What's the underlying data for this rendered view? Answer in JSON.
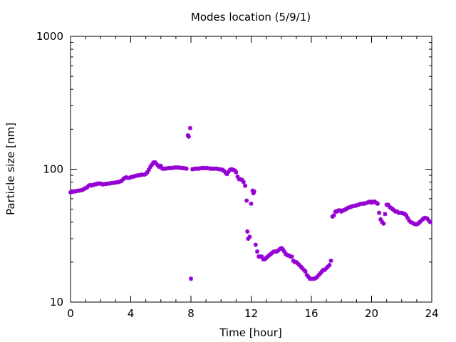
{
  "chart_data": {
    "type": "scatter",
    "title": "Modes location (5/9/1)",
    "xlabel": "Time [hour]",
    "ylabel": "Particle size [nm]",
    "xlim": [
      0,
      24
    ],
    "ylim": [
      10,
      1000
    ],
    "yscale": "log",
    "x_ticks": [
      0,
      4,
      8,
      12,
      16,
      20,
      24
    ],
    "y_ticks": [
      10,
      100,
      1000
    ],
    "x_tick_labels": [
      "0",
      "4",
      "8",
      "12",
      "16",
      "20",
      "24"
    ],
    "y_tick_labels": [
      "10",
      "100",
      "1000"
    ],
    "grid": false,
    "legend": "none",
    "marker_color": "#9400D3",
    "series": [
      {
        "points": [
          [
            0.0,
            67
          ],
          [
            0.1,
            67.5
          ],
          [
            0.2,
            68
          ],
          [
            0.3,
            68
          ],
          [
            0.4,
            68.5
          ],
          [
            0.5,
            69
          ],
          [
            0.6,
            69
          ],
          [
            0.7,
            69.5
          ],
          [
            0.8,
            70
          ],
          [
            0.9,
            71
          ],
          [
            1.0,
            72
          ],
          [
            1.1,
            73
          ],
          [
            1.2,
            75
          ],
          [
            1.3,
            76
          ],
          [
            1.4,
            75.5
          ],
          [
            1.5,
            76
          ],
          [
            1.6,
            77
          ],
          [
            1.7,
            77
          ],
          [
            1.8,
            78
          ],
          [
            1.9,
            78
          ],
          [
            2.0,
            78
          ],
          [
            2.1,
            77
          ],
          [
            2.2,
            77
          ],
          [
            2.3,
            77.5
          ],
          [
            2.4,
            77.5
          ],
          [
            2.5,
            78
          ],
          [
            2.6,
            78
          ],
          [
            2.7,
            78.5
          ],
          [
            2.8,
            79
          ],
          [
            2.9,
            79
          ],
          [
            3.0,
            79.5
          ],
          [
            3.1,
            80
          ],
          [
            3.2,
            80
          ],
          [
            3.3,
            81
          ],
          [
            3.4,
            82
          ],
          [
            3.5,
            84
          ],
          [
            3.6,
            86
          ],
          [
            3.7,
            87
          ],
          [
            3.8,
            86
          ],
          [
            3.9,
            86
          ],
          [
            4.0,
            87
          ],
          [
            4.1,
            88
          ],
          [
            4.2,
            88
          ],
          [
            4.3,
            89
          ],
          [
            4.4,
            89.5
          ],
          [
            4.5,
            90
          ],
          [
            4.6,
            90
          ],
          [
            4.7,
            91
          ],
          [
            4.8,
            91
          ],
          [
            4.9,
            91
          ],
          [
            5.0,
            92
          ],
          [
            5.1,
            95
          ],
          [
            5.2,
            99
          ],
          [
            5.3,
            104
          ],
          [
            5.4,
            108
          ],
          [
            5.5,
            112
          ],
          [
            5.6,
            113
          ],
          [
            5.7,
            110
          ],
          [
            5.8,
            107
          ],
          [
            5.9,
            104
          ],
          [
            6.0,
            106
          ],
          [
            6.1,
            101
          ],
          [
            6.2,
            101
          ],
          [
            6.3,
            101
          ],
          [
            6.4,
            101.5
          ],
          [
            6.5,
            102
          ],
          [
            6.6,
            102
          ],
          [
            6.7,
            102
          ],
          [
            6.8,
            102.5
          ],
          [
            6.9,
            103
          ],
          [
            7.0,
            103
          ],
          [
            7.1,
            103
          ],
          [
            7.2,
            103
          ],
          [
            7.3,
            102.5
          ],
          [
            7.4,
            102
          ],
          [
            7.5,
            102
          ],
          [
            7.6,
            101.5
          ],
          [
            7.7,
            101
          ],
          [
            7.8,
            180
          ],
          [
            7.85,
            176
          ],
          [
            7.95,
            204
          ],
          [
            8.0,
            15
          ],
          [
            8.1,
            100
          ],
          [
            8.2,
            100.5
          ],
          [
            8.3,
            101
          ],
          [
            8.4,
            101
          ],
          [
            8.5,
            101
          ],
          [
            8.6,
            101.5
          ],
          [
            8.7,
            102
          ],
          [
            8.8,
            102
          ],
          [
            8.9,
            102
          ],
          [
            9.0,
            102
          ],
          [
            9.1,
            102
          ],
          [
            9.2,
            101.5
          ],
          [
            9.3,
            101
          ],
          [
            9.4,
            101
          ],
          [
            9.5,
            101
          ],
          [
            9.6,
            101
          ],
          [
            9.7,
            101
          ],
          [
            9.8,
            100.5
          ],
          [
            9.9,
            100
          ],
          [
            10.0,
            99.5
          ],
          [
            10.1,
            99
          ],
          [
            10.2,
            97
          ],
          [
            10.3,
            94
          ],
          [
            10.4,
            92
          ],
          [
            10.5,
            96
          ],
          [
            10.6,
            99
          ],
          [
            10.7,
            100
          ],
          [
            10.8,
            99
          ],
          [
            10.9,
            98
          ],
          [
            11.0,
            95
          ],
          [
            11.1,
            88
          ],
          [
            11.2,
            84
          ],
          [
            11.3,
            84
          ],
          [
            11.4,
            83
          ],
          [
            11.5,
            80
          ],
          [
            11.6,
            75
          ],
          [
            11.7,
            58
          ],
          [
            11.75,
            34
          ],
          [
            11.8,
            30
          ],
          [
            11.9,
            31
          ],
          [
            12.0,
            55
          ],
          [
            12.1,
            69
          ],
          [
            12.15,
            66
          ],
          [
            12.2,
            68
          ],
          [
            12.3,
            27
          ],
          [
            12.4,
            24
          ],
          [
            12.5,
            22
          ],
          [
            12.6,
            22
          ],
          [
            12.7,
            22
          ],
          [
            12.8,
            21
          ],
          [
            12.9,
            21
          ],
          [
            13.0,
            21.5
          ],
          [
            13.1,
            22
          ],
          [
            13.2,
            22.5
          ],
          [
            13.3,
            23
          ],
          [
            13.4,
            23.5
          ],
          [
            13.5,
            24
          ],
          [
            13.6,
            24
          ],
          [
            13.7,
            24
          ],
          [
            13.8,
            24.5
          ],
          [
            13.9,
            25
          ],
          [
            14.0,
            25.5
          ],
          [
            14.1,
            25
          ],
          [
            14.2,
            24
          ],
          [
            14.3,
            23
          ],
          [
            14.4,
            22.5
          ],
          [
            14.5,
            22.5
          ],
          [
            14.6,
            22
          ],
          [
            14.7,
            22
          ],
          [
            14.8,
            20.5
          ],
          [
            14.9,
            20
          ],
          [
            15.0,
            20
          ],
          [
            15.1,
            19.5
          ],
          [
            15.2,
            19
          ],
          [
            15.3,
            18.5
          ],
          [
            15.4,
            18
          ],
          [
            15.5,
            17.5
          ],
          [
            15.6,
            17
          ],
          [
            15.7,
            16
          ],
          [
            15.8,
            15.5
          ],
          [
            15.9,
            15
          ],
          [
            16.0,
            15
          ],
          [
            16.1,
            15
          ],
          [
            16.2,
            15
          ],
          [
            16.3,
            15.2
          ],
          [
            16.4,
            15.5
          ],
          [
            16.5,
            16
          ],
          [
            16.6,
            16.5
          ],
          [
            16.7,
            17
          ],
          [
            16.8,
            17.5
          ],
          [
            16.9,
            17.5
          ],
          [
            17.0,
            18
          ],
          [
            17.1,
            18.5
          ],
          [
            17.2,
            19
          ],
          [
            17.3,
            20.5
          ],
          [
            17.4,
            44
          ],
          [
            17.5,
            45
          ],
          [
            17.6,
            48
          ],
          [
            17.7,
            48
          ],
          [
            17.8,
            49
          ],
          [
            17.9,
            49
          ],
          [
            18.0,
            48
          ],
          [
            18.1,
            49
          ],
          [
            18.2,
            49.5
          ],
          [
            18.3,
            50
          ],
          [
            18.4,
            51
          ],
          [
            18.5,
            51.5
          ],
          [
            18.6,
            52
          ],
          [
            18.7,
            52.5
          ],
          [
            18.8,
            53
          ],
          [
            18.9,
            53
          ],
          [
            19.0,
            53.5
          ],
          [
            19.1,
            54
          ],
          [
            19.2,
            54.5
          ],
          [
            19.3,
            55
          ],
          [
            19.4,
            55
          ],
          [
            19.5,
            55
          ],
          [
            19.6,
            55.5
          ],
          [
            19.7,
            56
          ],
          [
            19.8,
            56.5
          ],
          [
            19.9,
            57
          ],
          [
            20.0,
            56
          ],
          [
            20.1,
            57
          ],
          [
            20.2,
            57
          ],
          [
            20.3,
            56
          ],
          [
            20.4,
            55
          ],
          [
            20.5,
            47
          ],
          [
            20.6,
            42
          ],
          [
            20.7,
            40
          ],
          [
            20.8,
            39
          ],
          [
            20.9,
            46
          ],
          [
            21.0,
            54
          ],
          [
            21.1,
            54
          ],
          [
            21.2,
            52
          ],
          [
            21.3,
            51
          ],
          [
            21.4,
            50
          ],
          [
            21.5,
            49
          ],
          [
            21.6,
            48
          ],
          [
            21.7,
            48
          ],
          [
            21.8,
            47
          ],
          [
            21.9,
            47
          ],
          [
            22.0,
            47
          ],
          [
            22.1,
            46.5
          ],
          [
            22.2,
            46
          ],
          [
            22.3,
            45
          ],
          [
            22.4,
            43
          ],
          [
            22.5,
            41
          ],
          [
            22.6,
            40
          ],
          [
            22.7,
            39.5
          ],
          [
            22.8,
            39
          ],
          [
            22.9,
            38.5
          ],
          [
            23.0,
            38.5
          ],
          [
            23.1,
            39
          ],
          [
            23.2,
            40
          ],
          [
            23.3,
            41
          ],
          [
            23.4,
            42
          ],
          [
            23.5,
            43
          ],
          [
            23.6,
            43
          ],
          [
            23.7,
            42.5
          ],
          [
            23.8,
            41
          ],
          [
            23.9,
            40
          ]
        ]
      }
    ]
  }
}
